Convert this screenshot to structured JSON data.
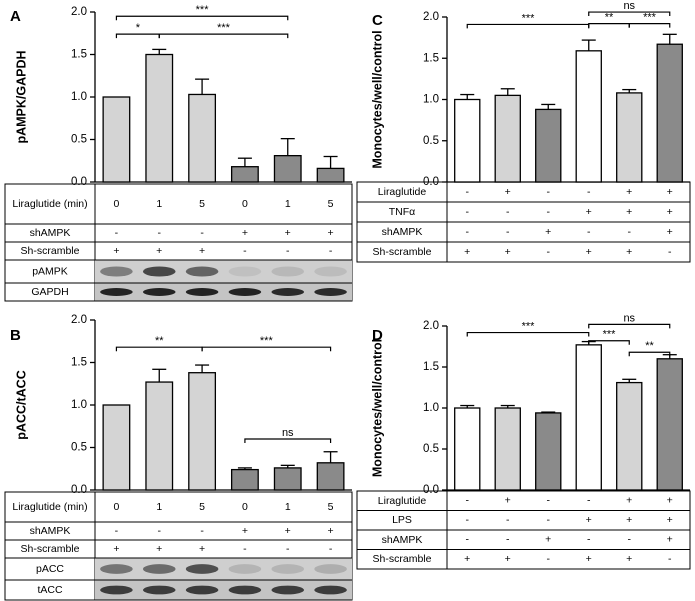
{
  "chart_data": [
    {
      "type": "bar",
      "label": "A",
      "y_label": "pAMPK/GAPDH",
      "values": [
        1.0,
        1.5,
        1.03,
        0.18,
        0.31,
        0.16
      ],
      "errors": [
        0,
        0.06,
        0.18,
        0.1,
        0.2,
        0.14
      ],
      "colors": [
        "#d4d4d4",
        "#d4d4d4",
        "#d4d4d4",
        "#8a8a8a",
        "#8a8a8a",
        "#8a8a8a"
      ],
      "ylim": [
        0,
        2
      ],
      "yticks": [
        {
          "value": 0,
          "label": "0.0"
        },
        0.5,
        {
          "value": 1,
          "label": "1.0"
        },
        1.5,
        {
          "value": 2,
          "label": "2.0"
        }
      ],
      "significance": [
        {
          "text": "***",
          "from": 0,
          "to": 4
        },
        {
          "text": "*",
          "from": 0,
          "to": 1
        },
        {
          "text": "***",
          "from": 1,
          "to": 4
        }
      ],
      "table": [
        {
          "label": "Liraglutide (min)",
          "cells": [
            "0",
            "1",
            "5",
            "0",
            "1",
            "5"
          ]
        },
        {
          "label": "shAMPK",
          "cells": [
            "-",
            "-",
            "-",
            "+",
            "+",
            "+"
          ]
        },
        {
          "label": "Sh-scramble",
          "cells": [
            "+",
            "+",
            "+",
            "-",
            "-",
            "-"
          ]
        }
      ],
      "blots": [
        "pAMPK",
        "GAPDH"
      ]
    },
    {
      "type": "bar",
      "label": "B",
      "y_label": "pACC/tACC",
      "values": [
        1.0,
        1.27,
        1.38,
        0.24,
        0.26,
        0.32
      ],
      "errors": [
        0,
        0.15,
        0.09,
        0.02,
        0.03,
        0.13
      ],
      "colors": [
        "#d4d4d4",
        "#d4d4d4",
        "#d4d4d4",
        "#8a8a8a",
        "#8a8a8a",
        "#8a8a8a"
      ],
      "ylim": [
        0,
        2
      ],
      "yticks": [
        {
          "value": 0,
          "label": "0.0"
        },
        0.5,
        {
          "value": 1,
          "label": "1.0"
        },
        1.5,
        {
          "value": 2,
          "label": "2.0"
        }
      ],
      "significance": [
        {
          "text": "**",
          "from": 0,
          "to": 2
        },
        {
          "text": "***",
          "from": 2,
          "to": 5
        },
        {
          "text": "ns",
          "from": 3,
          "to": 5
        }
      ],
      "table": [
        {
          "label": "Liraglutide (min)",
          "cells": [
            "0",
            "1",
            "5",
            "0",
            "1",
            "5"
          ]
        },
        {
          "label": "shAMPK",
          "cells": [
            "-",
            "-",
            "-",
            "+",
            "+",
            "+"
          ]
        },
        {
          "label": "Sh-scramble",
          "cells": [
            "+",
            "+",
            "+",
            "-",
            "-",
            "-"
          ]
        }
      ],
      "blots": [
        "pACC",
        "tACC"
      ]
    },
    {
      "type": "bar",
      "label": "C",
      "y_label": "Monocytes/well/control",
      "values": [
        1.0,
        1.05,
        0.88,
        1.59,
        1.08,
        1.67
      ],
      "errors": [
        0.06,
        0.08,
        0.06,
        0.13,
        0.04,
        0.12
      ],
      "colors": [
        "#ffffff",
        "#d4d4d4",
        "#8a8a8a",
        "#ffffff",
        "#d4d4d4",
        "#8a8a8a"
      ],
      "ylim": [
        0,
        2
      ],
      "yticks": [
        {
          "value": 0,
          "label": "0.0"
        },
        0.5,
        {
          "value": 1,
          "label": "1.0"
        },
        1.5,
        {
          "value": 2,
          "label": "2.0"
        }
      ],
      "significance": [
        {
          "text": "***",
          "from": 0,
          "to": 3
        },
        {
          "text": "ns",
          "from": 3,
          "to": 5
        },
        {
          "text": "**",
          "from": 3,
          "to": 4
        },
        {
          "text": "***",
          "from": 4,
          "to": 5
        }
      ],
      "table": [
        {
          "label": "Liraglutide",
          "cells": [
            "-",
            "+",
            "-",
            "-",
            "+",
            "+"
          ]
        },
        {
          "label": "TNFα",
          "cells": [
            "-",
            "-",
            "-",
            "+",
            "+",
            "+"
          ]
        },
        {
          "label": "shAMPK",
          "cells": [
            "-",
            "-",
            "+",
            "-",
            "-",
            "+"
          ]
        },
        {
          "label": "Sh-scramble",
          "cells": [
            "+",
            "+",
            "-",
            "+",
            "+",
            "-"
          ]
        }
      ]
    },
    {
      "type": "bar",
      "label": "D",
      "y_label": "Monocytes/well/control",
      "values": [
        1.0,
        1.0,
        0.94,
        1.77,
        1.31,
        1.6
      ],
      "errors": [
        0.03,
        0.03,
        0.01,
        0.04,
        0.04,
        0.05
      ],
      "colors": [
        "#ffffff",
        "#d4d4d4",
        "#8a8a8a",
        "#ffffff",
        "#d4d4d4",
        "#8a8a8a"
      ],
      "ylim": [
        0,
        2
      ],
      "yticks": [
        {
          "value": 0,
          "label": "0.0"
        },
        0.5,
        {
          "value": 1,
          "label": "1.0"
        },
        1.5,
        {
          "value": 2,
          "label": "2.0"
        }
      ],
      "significance": [
        {
          "text": "***",
          "from": 0,
          "to": 3
        },
        {
          "text": "ns",
          "from": 3,
          "to": 5
        },
        {
          "text": "***",
          "from": 3,
          "to": 4
        },
        {
          "text": "**",
          "from": 4,
          "to": 5
        }
      ],
      "table": [
        {
          "label": "Liraglutide",
          "cells": [
            "-",
            "+",
            "-",
            "-",
            "+",
            "+"
          ]
        },
        {
          "label": "LPS",
          "cells": [
            "-",
            "-",
            "-",
            "+",
            "+",
            "+"
          ]
        },
        {
          "label": "shAMPK",
          "cells": [
            "-",
            "-",
            "+",
            "-",
            "-",
            "+"
          ]
        },
        {
          "label": "Sh-scramble",
          "cells": [
            "+",
            "+",
            "-",
            "+",
            "+",
            "-"
          ]
        }
      ]
    }
  ]
}
